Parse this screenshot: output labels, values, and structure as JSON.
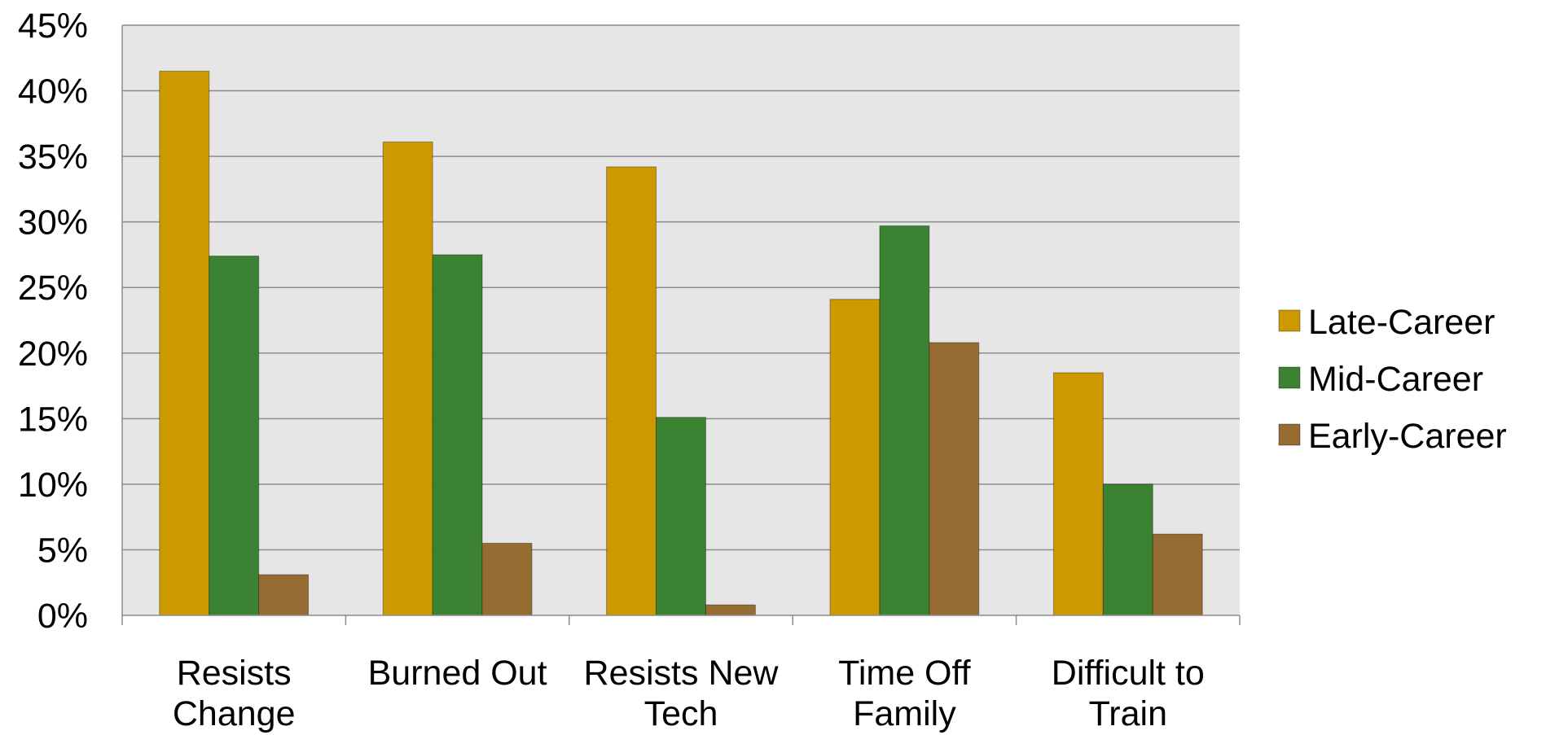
{
  "chart_data": {
    "type": "bar",
    "categories": [
      [
        "Resists",
        "Change"
      ],
      [
        "Burned Out"
      ],
      [
        "Resists New",
        "Tech"
      ],
      [
        "Time Off",
        "Family"
      ],
      [
        "Difficult to",
        "Train"
      ]
    ],
    "series": [
      {
        "name": "Late-Career",
        "values": [
          41.5,
          36.1,
          34.2,
          24.1,
          18.5
        ]
      },
      {
        "name": "Mid-Career",
        "values": [
          27.4,
          27.5,
          15.1,
          29.7,
          10.0
        ]
      },
      {
        "name": "Early-Career",
        "values": [
          3.1,
          5.5,
          0.8,
          20.8,
          6.2
        ]
      }
    ],
    "ylim": [
      0,
      45
    ],
    "yticks": [
      "0%",
      "5%",
      "10%",
      "15%",
      "20%",
      "25%",
      "30%",
      "35%",
      "40%",
      "45%"
    ],
    "grid": true,
    "legend_position": "right",
    "colors": {
      "Late-Career": "#CC9900",
      "Mid-Career": "#3B8332",
      "Early-Career": "#966C33",
      "plot_background": "#E6E6E6",
      "grid": "#8C8C8C"
    }
  }
}
